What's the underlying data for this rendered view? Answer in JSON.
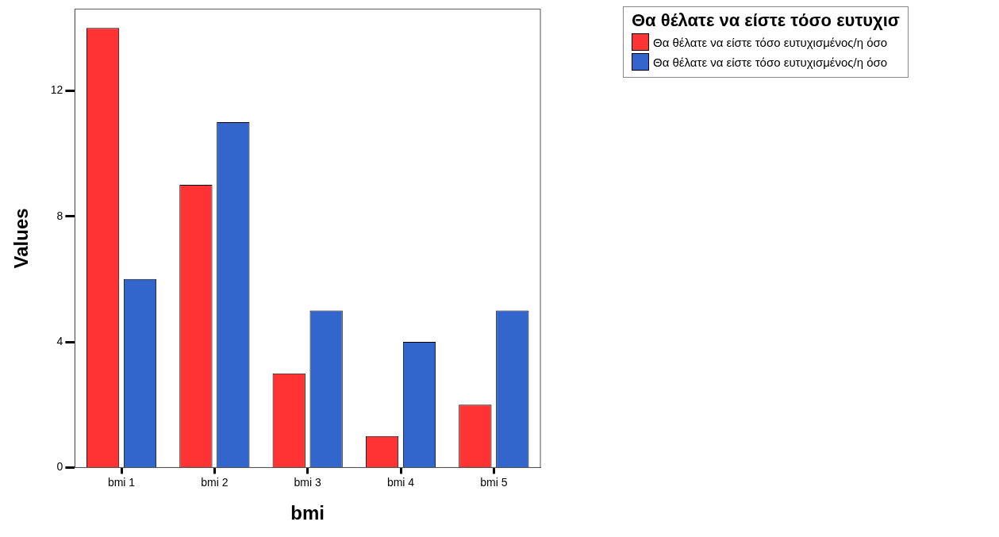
{
  "chart_data": {
    "type": "bar",
    "xlabel": "bmi",
    "ylabel": "Values",
    "legend_title": "Θα θέλατε να είστε τόσο ευτυχισ",
    "legend": "top right",
    "grid": false,
    "categories": [
      "bmi 1",
      "bmi 2",
      "bmi 3",
      "bmi 4",
      "bmi 5"
    ],
    "ylim": [
      0,
      14.6
    ],
    "yticks": [
      0,
      4,
      8,
      12
    ],
    "series": [
      {
        "name": "Θα θέλατε να είστε τόσο ευτυχισμένος/η όσο",
        "color": "#ff3333",
        "values": [
          14,
          9,
          3,
          1,
          2
        ]
      },
      {
        "name": "Θα θέλατε να είστε τόσο ευτυχισμένος/η όσο",
        "color": "#3366cc",
        "values": [
          6,
          11,
          5,
          4,
          5
        ]
      }
    ]
  }
}
